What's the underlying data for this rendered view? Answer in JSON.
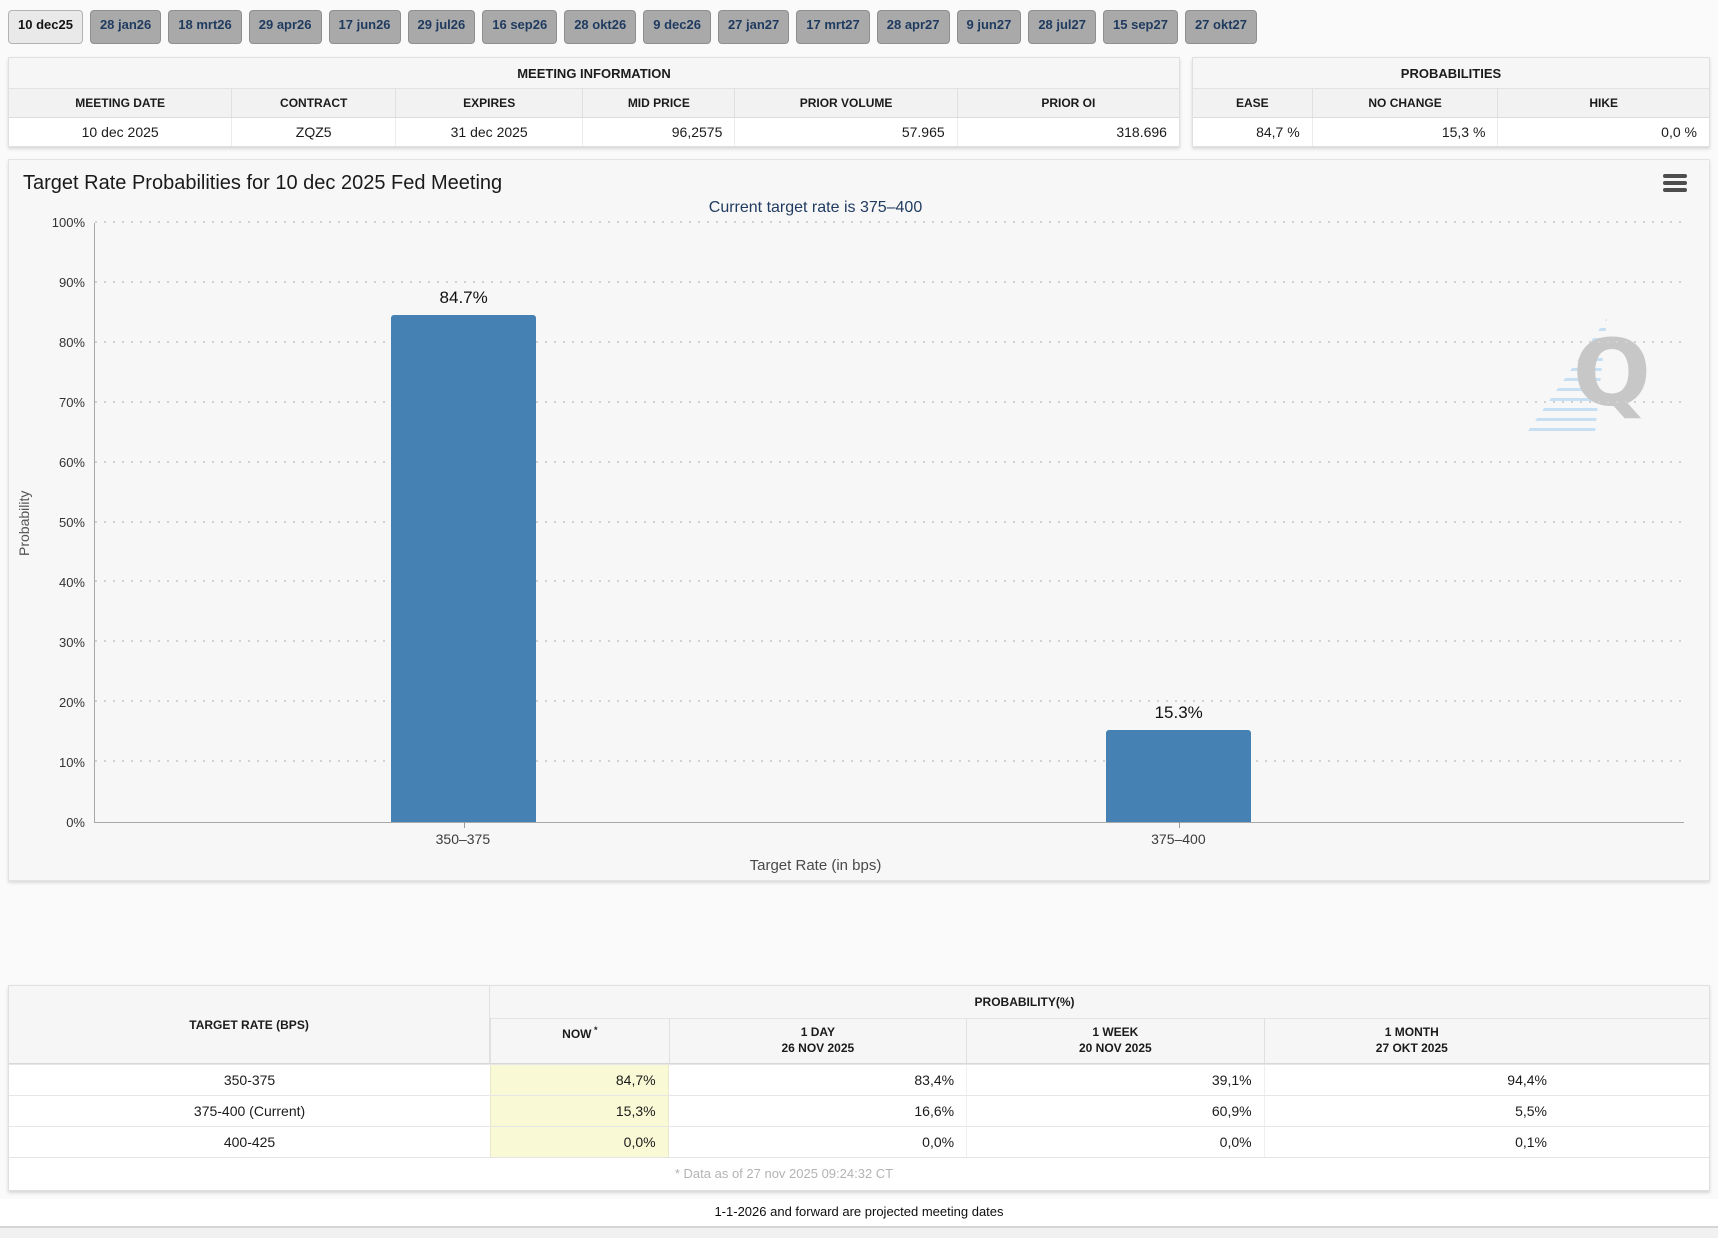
{
  "tabs": {
    "items": [
      {
        "label": "10 dec25",
        "active": true
      },
      {
        "label": "28 jan26",
        "active": false
      },
      {
        "label": "18 mrt26",
        "active": false
      },
      {
        "label": "29 apr26",
        "active": false
      },
      {
        "label": "17 jun26",
        "active": false
      },
      {
        "label": "29 jul26",
        "active": false
      },
      {
        "label": "16 sep26",
        "active": false
      },
      {
        "label": "28 okt26",
        "active": false
      },
      {
        "label": "9 dec26",
        "active": false
      },
      {
        "label": "27 jan27",
        "active": false
      },
      {
        "label": "17 mrt27",
        "active": false
      },
      {
        "label": "28 apr27",
        "active": false
      },
      {
        "label": "9 jun27",
        "active": false
      },
      {
        "label": "28 jul27",
        "active": false
      },
      {
        "label": "15 sep27",
        "active": false
      },
      {
        "label": "27 okt27",
        "active": false
      }
    ]
  },
  "meeting_info": {
    "title": "MEETING INFORMATION",
    "columns": [
      "MEETING DATE",
      "CONTRACT",
      "EXPIRES",
      "MID PRICE",
      "PRIOR VOLUME",
      "PRIOR OI"
    ],
    "row": [
      "10 dec 2025",
      "ZQZ5",
      "31 dec 2025",
      "96,2575",
      "57.965",
      "318.696"
    ]
  },
  "probabilities": {
    "title": "PROBABILITIES",
    "columns": [
      "EASE",
      "NO CHANGE",
      "HIKE"
    ],
    "row": [
      "84,7 %",
      "15,3 %",
      "0,0 %"
    ]
  },
  "chart": {
    "title": "Target Rate Probabilities for 10 dec 2025 Fed Meeting",
    "subtitle": "Current target rate is 375–400",
    "menu_icon": "hamburger-menu-icon",
    "watermark_letter": "Q"
  },
  "chart_data": {
    "type": "bar",
    "title": "Target Rate Probabilities for 10 dec 2025 Fed Meeting",
    "subtitle": "Current target rate is 375–400",
    "categories": [
      "350–375",
      "375–400"
    ],
    "values": [
      84.7,
      15.3
    ],
    "value_labels": [
      "84.7%",
      "15.3%"
    ],
    "xlabel": "Target Rate (in bps)",
    "ylabel": "Probability",
    "ylim": [
      0,
      100
    ],
    "yticks": [
      0,
      10,
      20,
      30,
      40,
      50,
      60,
      70,
      80,
      90,
      100
    ],
    "ytick_suffix": "%",
    "grid": "dotted-horizontal",
    "legend": false,
    "bar_color": "#4681b4",
    "bar_centers_pct": [
      23.2,
      68.2
    ],
    "bar_width_pct": 9.1
  },
  "probability_table": {
    "header_left": "TARGET RATE (BPS)",
    "header_group": "PROBABILITY(%)",
    "columns": [
      {
        "line1": "NOW",
        "sup": "*",
        "line2": ""
      },
      {
        "line1": "1 DAY",
        "sup": "",
        "line2": "26 NOV 2025"
      },
      {
        "line1": "1 WEEK",
        "sup": "",
        "line2": "20 NOV 2025"
      },
      {
        "line1": "1 MONTH",
        "sup": "",
        "line2": "27 OKT 2025"
      }
    ],
    "rows": [
      {
        "rate": "350-375",
        "now": "84,7%",
        "day": "83,4%",
        "week": "39,1%",
        "month": "94,4%"
      },
      {
        "rate": "375-400 (Current)",
        "now": "15,3%",
        "day": "16,6%",
        "week": "60,9%",
        "month": "5,5%"
      },
      {
        "rate": "400-425",
        "now": "0,0%",
        "day": "0,0%",
        "week": "0,0%",
        "month": "0,1%"
      }
    ],
    "footnote": "* Data as of 27 nov 2025 09:24:32 CT"
  },
  "footer": {
    "note": "1-1-2026 and forward are projected meeting dates"
  },
  "colors": {
    "bar": "#4681b4",
    "accent_navy": "#1f3a5f",
    "now_highlight": "#f9f9d6",
    "tab_inactive": "#a9a9a9",
    "tab_active": "#e9e9e9"
  }
}
